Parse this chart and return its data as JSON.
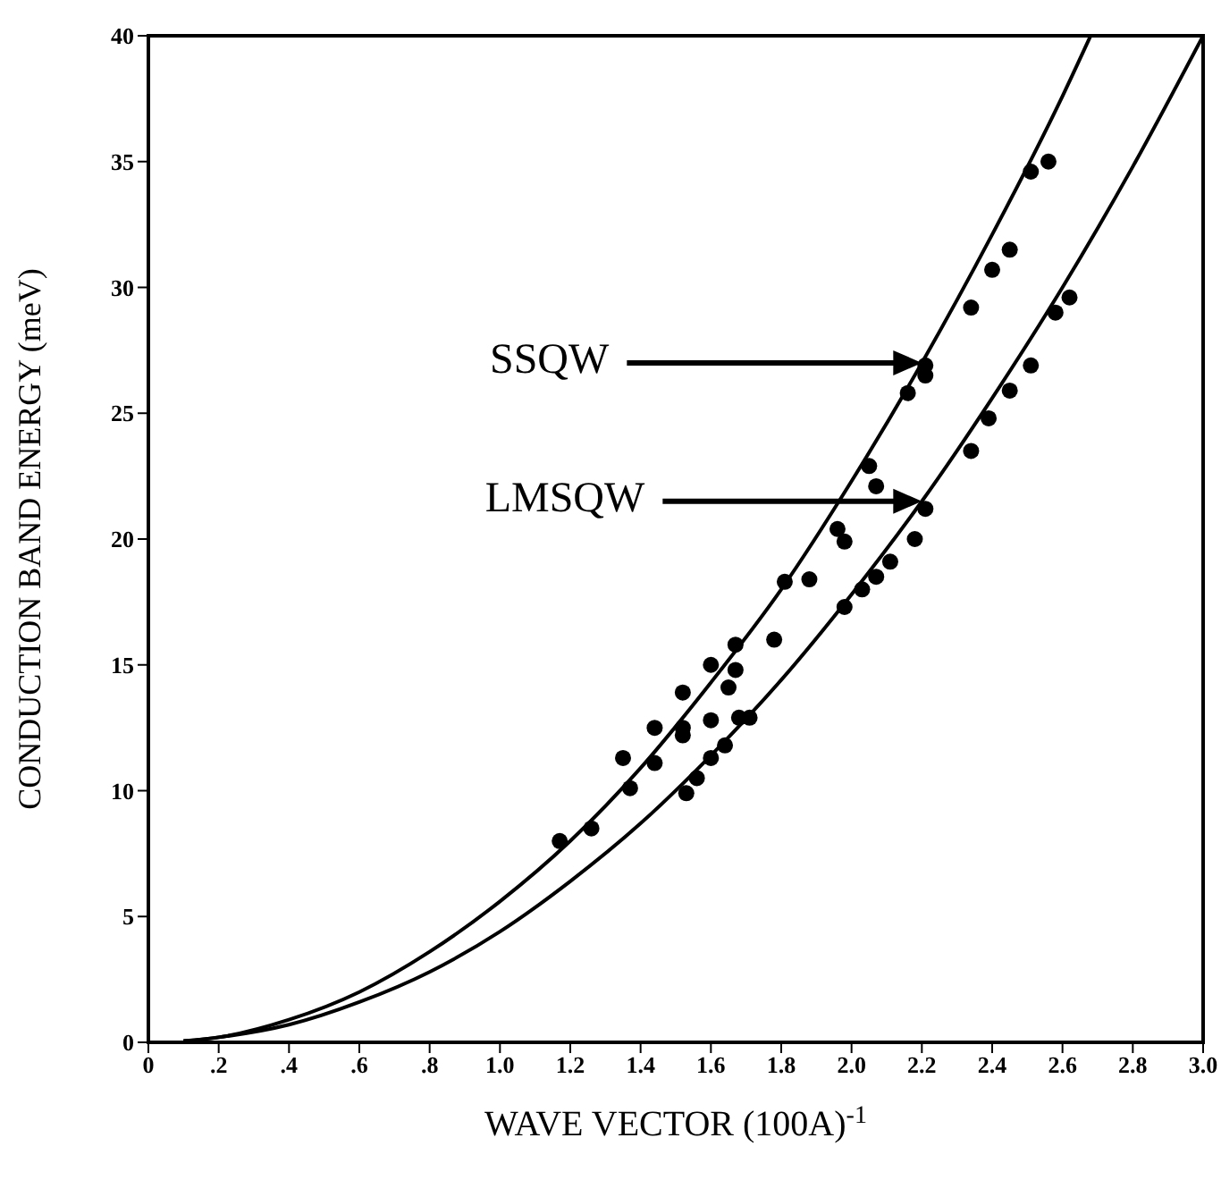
{
  "chart_data": {
    "type": "scatter",
    "xlabel": "WAVE VECTOR (100A)$^{-1}$",
    "ylabel": "CONDUCTION BAND ENERGY (meV)",
    "xlim": [
      0,
      3.0
    ],
    "ylim": [
      0,
      40
    ],
    "xticks": [
      0,
      {
        "value": 0.2,
        "label": ".2"
      },
      {
        "value": 0.4,
        "label": ".4"
      },
      {
        "value": 0.6,
        "label": ".6"
      },
      {
        "value": 0.8,
        "label": ".8"
      },
      {
        "value": 1.0,
        "label": "1.0"
      },
      {
        "value": 1.2,
        "label": "1.2"
      },
      {
        "value": 1.4,
        "label": "1.4"
      },
      {
        "value": 1.6,
        "label": "1.6"
      },
      {
        "value": 1.8,
        "label": "1.8"
      },
      {
        "value": 2.0,
        "label": "2.0"
      },
      {
        "value": 2.2,
        "label": "2.2"
      },
      {
        "value": 2.4,
        "label": "2.4"
      },
      {
        "value": 2.6,
        "label": "2.6"
      },
      {
        "value": 2.8,
        "label": "2.8"
      },
      {
        "value": 3.0,
        "label": "3.0"
      }
    ],
    "yticks": [
      0,
      5,
      10,
      15,
      20,
      25,
      30,
      35,
      40
    ],
    "marker": "circle",
    "annotations": [
      "SSQW",
      "LMSQW"
    ],
    "series": [
      {
        "type": "line",
        "color": "#000000",
        "marker": "none",
        "line_style": "solid",
        "x": [
          0.1,
          0.2,
          0.4,
          0.6,
          0.8,
          1.0,
          1.2,
          1.4,
          1.6,
          1.8,
          2.0,
          2.2,
          2.4,
          2.6,
          2.68
        ],
        "values": [
          0.05,
          0.2,
          0.9,
          2.0,
          3.6,
          5.6,
          8.0,
          10.9,
          14.3,
          18.0,
          22.3,
          27.0,
          32.1,
          37.6,
          40
        ]
      },
      {
        "type": "line",
        "color": "#000000",
        "marker": "none",
        "line_style": "solid",
        "x": [
          0.1,
          0.2,
          0.4,
          0.6,
          0.8,
          1.0,
          1.2,
          1.4,
          1.6,
          1.8,
          2.0,
          2.2,
          2.4,
          2.6,
          2.8,
          3.0
        ],
        "values": [
          0.05,
          0.2,
          0.7,
          1.6,
          2.8,
          4.4,
          6.4,
          8.7,
          11.4,
          14.4,
          17.8,
          21.5,
          25.6,
          30.0,
          34.8,
          40
        ]
      },
      {
        "color": "#000000",
        "x": [
          1.17,
          1.26,
          1.35,
          1.37,
          1.44,
          1.44,
          1.52,
          1.52,
          1.52,
          1.53,
          1.56,
          1.6,
          1.6,
          1.6,
          1.64,
          1.65,
          1.67,
          1.67,
          1.68,
          1.71,
          1.78,
          1.81,
          1.88,
          1.96,
          1.98,
          1.98,
          2.03,
          2.05,
          2.07,
          2.07,
          2.11,
          2.16,
          2.18,
          2.21,
          2.21,
          2.21,
          2.34,
          2.34,
          2.39,
          2.4,
          2.45,
          2.45,
          2.51,
          2.51,
          2.56,
          2.58,
          2.62
        ],
        "values": [
          8.0,
          8.5,
          11.3,
          10.1,
          12.5,
          11.1,
          13.9,
          12.5,
          12.2,
          9.9,
          10.5,
          15.0,
          12.8,
          11.3,
          11.8,
          14.1,
          15.8,
          14.8,
          12.9,
          12.9,
          16.0,
          18.3,
          18.4,
          20.4,
          19.9,
          17.3,
          18.0,
          22.9,
          22.1,
          18.5,
          19.1,
          25.8,
          20.0,
          26.9,
          26.5,
          21.2,
          23.5,
          29.2,
          24.8,
          30.7,
          25.9,
          31.5,
          26.9,
          34.6,
          35.0,
          29.0,
          29.6
        ]
      }
    ]
  }
}
